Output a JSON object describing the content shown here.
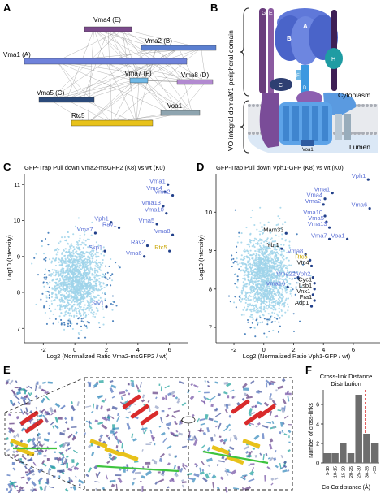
{
  "panels": {
    "A": {
      "letter": "A",
      "nodes": [
        {
          "label": "Vma4 (E)",
          "color": "#7b4a8b"
        },
        {
          "label": "Vma2 (B)",
          "color": "#5b7fd0"
        },
        {
          "label": "Vma1 (A)",
          "color": "#6f82db"
        },
        {
          "label": "Vma7 (F)",
          "color": "#6fb8e6"
        },
        {
          "label": "Vma8 (D)",
          "color": "#b28ad0"
        },
        {
          "label": "Vma5 (C)",
          "color": "#2b4a7a"
        },
        {
          "label": "Voa1",
          "color": "#8fa5b0"
        },
        {
          "label": "Rtc5",
          "color": "#e8c21a"
        }
      ]
    },
    "B": {
      "letter": "B",
      "v1_label": "V1 peripheral domain",
      "v0_label": "VO integral domain",
      "cytoplasm": "Cytoplasm",
      "lumen": "Lumen",
      "voa1": "Voa1",
      "subunits": [
        "G",
        "E",
        "B",
        "A",
        "C",
        "H",
        "F",
        "D",
        "d",
        "a",
        "e",
        "f",
        "c",
        "c'",
        "c\""
      ]
    },
    "C": {
      "letter": "C",
      "title": "GFP-Trap Pull down Vma2-msGFP2 (K8) vs wt (K0)",
      "xlabel": "Log2 (Normalized Ratio Vma2-msGFP2 / wt)",
      "ylabel": "Log10 (Intensity)",
      "xticks": [
        "-2",
        "0",
        "2",
        "4",
        "6"
      ],
      "yticks": [
        "7",
        "8",
        "9",
        "10",
        "11"
      ]
    },
    "D": {
      "letter": "D",
      "title": "GFP-Trap Pull down Vph1-GFP (K8) vs wt (K0)",
      "xlabel": "Log2 (Normalized Ratio Vph1-GFP / wt)",
      "ylabel": "Log10 (Intensity)",
      "xticks": [
        "-2",
        "0",
        "2",
        "4",
        "6"
      ],
      "yticks": [
        "7",
        "8",
        "9",
        "10"
      ]
    },
    "E": {
      "letter": "E"
    },
    "F": {
      "letter": "F",
      "title_line1": "Cross-link Distance",
      "title_line2": "Distribution",
      "xlabel": "Cα-Cα distance (Å)",
      "ylabel": "Number of cross-links",
      "yticks": [
        "0",
        "2",
        "4",
        "6"
      ]
    }
  },
  "chart_data": [
    {
      "type": "scatter",
      "title": "GFP-Trap Pull down Vma2-msGFP2 (K8) vs wt (K0)",
      "xlabel": "Log2 (Normalized Ratio Vma2-msGFP2 / wt)",
      "ylabel": "Log10 (Intensity)",
      "xlim": [
        -3.2,
        7.2
      ],
      "ylim": [
        6.6,
        11.3
      ],
      "labeled_points": [
        {
          "name": "Vma1",
          "x": 5.9,
          "y": 11.0,
          "color": "#5b6fd6"
        },
        {
          "name": "Vma4",
          "x": 5.7,
          "y": 10.8,
          "color": "#5b6fd6"
        },
        {
          "name": "Vma2",
          "x": 6.2,
          "y": 10.7,
          "color": "#5b6fd6"
        },
        {
          "name": "Vma13",
          "x": 5.6,
          "y": 10.4,
          "color": "#5b6fd6"
        },
        {
          "name": "Vma10",
          "x": 5.8,
          "y": 10.2,
          "color": "#5b6fd6"
        },
        {
          "name": "Vph1",
          "x": 2.3,
          "y": 9.95,
          "color": "#5b6fd6"
        },
        {
          "name": "Rav1",
          "x": 2.8,
          "y": 9.8,
          "color": "#5b6fd6"
        },
        {
          "name": "Vma5",
          "x": 5.2,
          "y": 9.9,
          "color": "#5b6fd6"
        },
        {
          "name": "Vma7",
          "x": 1.3,
          "y": 9.65,
          "color": "#5b6fd6"
        },
        {
          "name": "Vma8",
          "x": 6.2,
          "y": 9.6,
          "color": "#5b6fd6"
        },
        {
          "name": "Rav2",
          "x": 4.6,
          "y": 9.3,
          "color": "#5b6fd6"
        },
        {
          "name": "Skp1",
          "x": 1.9,
          "y": 9.15,
          "color": "#5b6fd6"
        },
        {
          "name": "Rtc5",
          "x": 6.0,
          "y": 9.15,
          "color": "#c9a500"
        },
        {
          "name": "Vma6",
          "x": 4.4,
          "y": 9.0,
          "color": "#5b6fd6"
        },
        {
          "name": "Stv1",
          "x": 2.0,
          "y": 7.6,
          "color": "#5b6fd6"
        }
      ]
    },
    {
      "type": "scatter",
      "title": "GFP-Trap Pull down Vph1-GFP (K8) vs wt (K0)",
      "xlabel": "Log2 (Normalized Ratio Vph1-GFP / wt)",
      "ylabel": "Log10 (Intensity)",
      "xlim": [
        -3.2,
        7.8
      ],
      "ylim": [
        6.6,
        11.0
      ],
      "labeled_points": [
        {
          "name": "Vph1",
          "x": 7.0,
          "y": 10.85,
          "color": "#5b6fd6"
        },
        {
          "name": "Vma1",
          "x": 4.6,
          "y": 10.5,
          "color": "#5b6fd6"
        },
        {
          "name": "Vma4",
          "x": 4.1,
          "y": 10.35,
          "color": "#5b6fd6"
        },
        {
          "name": "Vma2",
          "x": 4.0,
          "y": 10.2,
          "color": "#5b6fd6"
        },
        {
          "name": "Vma6",
          "x": 7.1,
          "y": 10.1,
          "color": "#5b6fd6"
        },
        {
          "name": "Vma10",
          "x": 4.1,
          "y": 9.9,
          "color": "#5b6fd6"
        },
        {
          "name": "Vma5",
          "x": 4.2,
          "y": 9.75,
          "color": "#5b6fd6"
        },
        {
          "name": "Vma13",
          "x": 4.4,
          "y": 9.6,
          "color": "#5b6fd6"
        },
        {
          "name": "Mam33",
          "x": 1.5,
          "y": 9.45,
          "color": "#111111"
        },
        {
          "name": "Vma7",
          "x": 4.4,
          "y": 9.3,
          "color": "#5b6fd6"
        },
        {
          "name": "Voa1",
          "x": 5.6,
          "y": 9.3,
          "color": "#5b6fd6"
        },
        {
          "name": "Ybt1",
          "x": 1.2,
          "y": 9.05,
          "color": "#111111"
        },
        {
          "name": "Vma8",
          "x": 2.8,
          "y": 8.9,
          "color": "#5b6fd6"
        },
        {
          "name": "Rtc5",
          "x": 3.1,
          "y": 8.75,
          "color": "#c9a500"
        },
        {
          "name": "Vtc4",
          "x": 3.2,
          "y": 8.6,
          "color": "#111111"
        },
        {
          "name": "Vma22",
          "x": 2.3,
          "y": 8.3,
          "color": "#5b6fd6"
        },
        {
          "name": "Vph2",
          "x": 3.3,
          "y": 8.3,
          "color": "#5b6fd6"
        },
        {
          "name": "Cyc1",
          "x": 3.4,
          "y": 8.15,
          "color": "#111111"
        },
        {
          "name": "Vma16",
          "x": 1.6,
          "y": 8.05,
          "color": "#5b6fd6"
        },
        {
          "name": "Lsb1",
          "x": 3.4,
          "y": 8.0,
          "color": "#111111"
        },
        {
          "name": "Vnx1",
          "x": 3.3,
          "y": 7.85,
          "color": "#111111"
        },
        {
          "name": "Fra1",
          "x": 3.4,
          "y": 7.7,
          "color": "#111111"
        },
        {
          "name": "Adp1",
          "x": 3.2,
          "y": 7.55,
          "color": "#111111"
        }
      ]
    },
    {
      "type": "bar",
      "title": "Cross-link Distance Distribution",
      "xlabel": "Cα-Cα distance (Å)",
      "ylabel": "Number of cross-links",
      "categories": [
        "5-10",
        "10-15",
        "15-20",
        "20-25",
        "25-30",
        "30-35",
        ">35"
      ],
      "values": [
        1,
        1,
        2,
        1,
        7,
        3,
        2
      ],
      "ylim": [
        0,
        7.5
      ],
      "cutoff_line_color": "#e05050"
    }
  ]
}
